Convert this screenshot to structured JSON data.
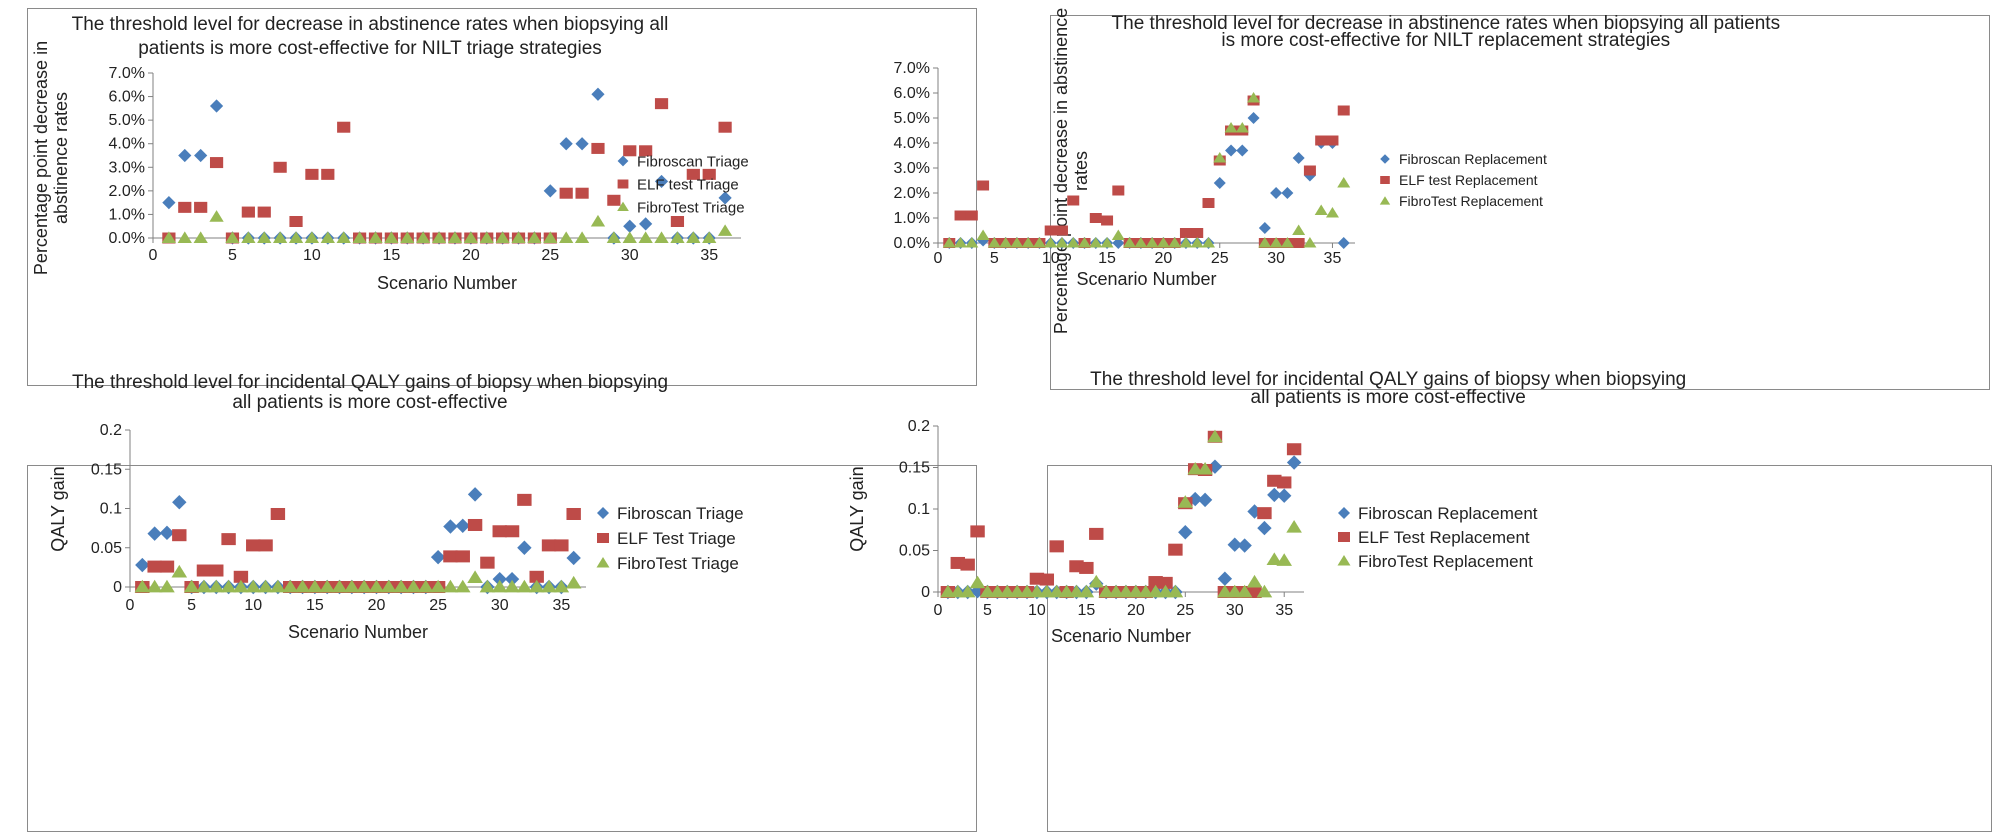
{
  "colors": {
    "fibroscan": "#4a7ebb",
    "elf": "#be4b48",
    "fibrotest": "#98b954",
    "axis": "#808080"
  },
  "icons": {
    "fibroscan": "diamond-marker-icon",
    "elf": "square-marker-icon",
    "fibrotest": "triangle-marker-icon"
  },
  "chart_data": [
    {
      "type": "scatter",
      "title_lines": [
        "The threshold level for decrease in abstinence rates when biopsying all",
        "patients is more cost-effective for NILT triage strategies"
      ],
      "xlabel": "Scenario Number",
      "ylabel_lines": [
        "Percentage point decrease in",
        "abstinence rates"
      ],
      "xlim": [
        0,
        37
      ],
      "ylim": [
        0,
        0.07
      ],
      "xticks": [
        0,
        5,
        10,
        15,
        20,
        25,
        30,
        35
      ],
      "yticks": [
        0,
        0.01,
        0.02,
        0.03,
        0.04,
        0.05,
        0.06,
        0.07
      ],
      "ytick_labels": [
        "0.0%",
        "1.0%",
        "2.0%",
        "3.0%",
        "4.0%",
        "5.0%",
        "6.0%",
        "7.0%"
      ],
      "legend_position": "right",
      "grid": false,
      "series": [
        {
          "name": "Fibroscan Triage",
          "marker": "diamond",
          "values": [
            0.015,
            0.035,
            0.035,
            0.056,
            0,
            0,
            0,
            0,
            0,
            0,
            0,
            0,
            0,
            0,
            0,
            0,
            0,
            0,
            0,
            0,
            0,
            0,
            0,
            0,
            0.02,
            0.04,
            0.04,
            0.061,
            0,
            0.005,
            0.006,
            0.024,
            0,
            0,
            0,
            0.017
          ]
        },
        {
          "name": "ELF test Triage",
          "marker": "square",
          "values": [
            0,
            0.013,
            0.013,
            0.032,
            0,
            0.011,
            0.011,
            0.03,
            0.007,
            0.027,
            0.027,
            0.047,
            0,
            0,
            0,
            0,
            0,
            0,
            0,
            0,
            0,
            0,
            0,
            0,
            0,
            0.019,
            0.019,
            0.038,
            0.016,
            0.037,
            0.037,
            0.057,
            0.007,
            0.027,
            0.027,
            0.047
          ]
        },
        {
          "name": "FibroTest Triage",
          "marker": "triangle",
          "values": [
            0,
            0,
            0,
            0.009,
            0,
            0,
            0,
            0,
            0,
            0,
            0,
            0,
            0,
            0,
            0,
            0,
            0,
            0,
            0,
            0,
            0,
            0,
            0,
            0,
            0,
            0,
            0,
            0.007,
            0,
            0,
            0,
            0,
            0,
            0,
            0,
            0.003
          ]
        }
      ]
    },
    {
      "type": "scatter",
      "title_lines": [
        "The threshold level for decrease in abstinence  rates when biopsying  all patients",
        "is more cost-effective for NILT replacement strategies"
      ],
      "xlabel": "Scenario Number",
      "ylabel_lines": [
        "Percentage point decrease in abstinence",
        "rates"
      ],
      "xlim": [
        0,
        37
      ],
      "ylim": [
        0,
        0.07
      ],
      "xticks": [
        0,
        5,
        10,
        15,
        20,
        25,
        30,
        35
      ],
      "yticks": [
        0,
        0.01,
        0.02,
        0.03,
        0.04,
        0.05,
        0.06,
        0.07
      ],
      "ytick_labels": [
        "0.0%",
        "1.0%",
        "2.0%",
        "3.0%",
        "4.0%",
        "5.0%",
        "6.0%",
        "7.0%"
      ],
      "legend_position": "right",
      "grid": false,
      "series": [
        {
          "name": "Fibroscan Replacement",
          "marker": "diamond",
          "values": [
            0,
            0,
            0,
            0.001,
            0,
            0,
            0,
            0,
            0,
            0,
            0,
            0,
            0,
            0,
            0,
            0,
            0,
            0,
            0,
            0,
            0,
            0,
            0,
            0,
            0.024,
            0.037,
            0.037,
            0.05,
            0.006,
            0.02,
            0.02,
            0.034,
            0.027,
            0.04,
            0.04,
            0
          ]
        },
        {
          "name": "ELF test Replacement",
          "marker": "square",
          "values": [
            0,
            0.011,
            0.011,
            0.023,
            0,
            0,
            0,
            0,
            0,
            0.005,
            0.005,
            0.017,
            0,
            0.01,
            0.009,
            0.021,
            0,
            0,
            0,
            0,
            0,
            0.004,
            0.004,
            0.016,
            0.033,
            0.045,
            0.045,
            0.057,
            0,
            0,
            0,
            0,
            0.029,
            0.041,
            0.041,
            0.053
          ]
        },
        {
          "name": "FibroTest Replacement",
          "marker": "triangle",
          "values": [
            0,
            0,
            0,
            0.003,
            0,
            0,
            0,
            0,
            0,
            0,
            0,
            0,
            0,
            0,
            0,
            0.003,
            0,
            0,
            0,
            0,
            0,
            0,
            0,
            0,
            0.034,
            0.046,
            0.046,
            0.058,
            0,
            0,
            0,
            0.005,
            0,
            0.013,
            0.012,
            0.024
          ]
        }
      ]
    },
    {
      "type": "scatter",
      "title_lines": [
        "The threshold level for incidental QALY gains of biopsy when biopsying",
        "all patients is more cost-effective"
      ],
      "xlabel": "Scenario Number",
      "ylabel_lines": [
        "QALY gain"
      ],
      "xlim": [
        0,
        37
      ],
      "ylim": [
        0,
        0.2
      ],
      "xticks": [
        0,
        5,
        10,
        15,
        20,
        25,
        30,
        35
      ],
      "yticks": [
        0,
        0.05,
        0.1,
        0.15,
        0.2
      ],
      "ytick_labels": [
        "0",
        "0.05",
        "0.1",
        "0.15",
        "0.2"
      ],
      "legend_position": "right",
      "grid": false,
      "series": [
        {
          "name": "Fibroscan Triage",
          "marker": "diamond",
          "values": [
            0.028,
            0.068,
            0.069,
            0.108,
            0,
            0,
            0,
            0,
            0,
            0,
            0,
            0,
            0,
            0,
            0,
            0,
            0,
            0,
            0,
            0,
            0,
            0,
            0,
            0,
            0.038,
            0.077,
            0.078,
            0.118,
            0,
            0.01,
            0.01,
            0.05,
            0,
            0,
            0,
            0.037
          ]
        },
        {
          "name": "ELF Test Triage",
          "marker": "square",
          "values": [
            0,
            0.026,
            0.026,
            0.066,
            0,
            0.021,
            0.021,
            0.061,
            0.013,
            0.053,
            0.053,
            0.093,
            0,
            0,
            0,
            0,
            0,
            0,
            0,
            0,
            0,
            0,
            0,
            0,
            0,
            0.039,
            0.039,
            0.079,
            0.031,
            0.071,
            0.071,
            0.111,
            0.013,
            0.053,
            0.053,
            0.093
          ]
        },
        {
          "name": "FibroTest Triage",
          "marker": "triangle",
          "values": [
            0,
            0,
            0,
            0.019,
            0,
            0,
            0,
            0,
            0,
            0,
            0,
            0,
            0,
            0,
            0,
            0,
            0,
            0,
            0,
            0,
            0,
            0,
            0,
            0,
            0,
            0,
            0,
            0.012,
            0,
            0,
            0,
            0,
            0,
            0,
            0,
            0.005
          ]
        }
      ]
    },
    {
      "type": "scatter",
      "title_lines": [
        "The threshold level for incidental QALY gains of biopsy when biopsying",
        "all patients is more cost-effective"
      ],
      "xlabel": "Scenario Number",
      "ylabel_lines": [
        "QALY gain"
      ],
      "xlim": [
        0,
        37
      ],
      "ylim": [
        0,
        0.2
      ],
      "xticks": [
        0,
        5,
        10,
        15,
        20,
        25,
        30,
        35
      ],
      "yticks": [
        0,
        0.05,
        0.1,
        0.15,
        0.2
      ],
      "ytick_labels": [
        "0",
        "0.05",
        "0.1",
        "0.15",
        "0.2"
      ],
      "legend_position": "right",
      "grid": false,
      "series": [
        {
          "name": "Fibroscan Replacement",
          "marker": "diamond",
          "values": [
            0,
            0,
            0,
            0.001,
            0,
            0,
            0,
            0,
            0,
            0,
            0,
            0,
            0,
            0,
            0,
            0.01,
            0,
            0,
            0,
            0,
            0,
            0,
            0,
            0,
            0.072,
            0.112,
            0.111,
            0.151,
            0.016,
            0.057,
            0.056,
            0.097,
            0.077,
            0.117,
            0.116,
            0.156
          ]
        },
        {
          "name": "ELF Test Replacement",
          "marker": "square",
          "values": [
            0,
            0.035,
            0.033,
            0.073,
            0,
            0,
            0,
            0,
            0,
            0.016,
            0.015,
            0.055,
            0,
            0.031,
            0.029,
            0.07,
            0,
            0,
            0,
            0,
            0,
            0.012,
            0.011,
            0.051,
            0.107,
            0.148,
            0.147,
            0.187,
            0,
            0,
            0,
            0,
            0.095,
            0.134,
            0.132,
            0.172
          ]
        },
        {
          "name": "FibroTest Replacement",
          "marker": "triangle",
          "values": [
            0,
            0,
            0,
            0.011,
            0,
            0,
            0,
            0,
            0,
            0,
            0,
            0,
            0,
            0,
            0,
            0.012,
            0,
            0,
            0,
            0,
            0,
            0,
            0,
            0,
            0.108,
            0.148,
            0.148,
            0.187,
            0,
            0,
            0,
            0.012,
            0,
            0.039,
            0.038,
            0.078
          ]
        }
      ]
    }
  ]
}
